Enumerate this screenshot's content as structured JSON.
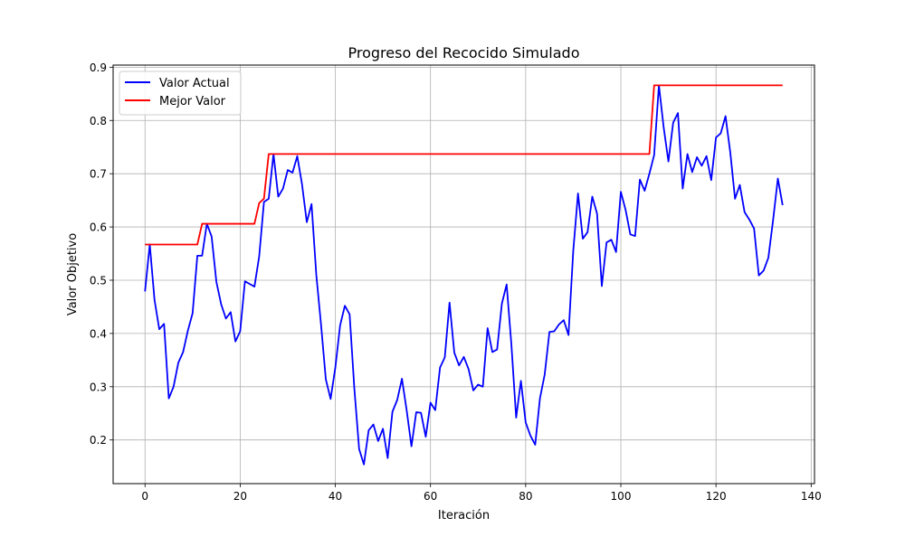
{
  "chart_data": {
    "type": "line",
    "title": "Progreso del Recocido Simulado",
    "xlabel": "Iteración",
    "ylabel": "Valor Objetivo",
    "xlim": [
      -6.7,
      140.7
    ],
    "ylim": [
      0.118,
      0.904
    ],
    "xticks": [
      0,
      20,
      40,
      60,
      80,
      100,
      120,
      140
    ],
    "yticks": [
      0.2,
      0.3,
      0.4,
      0.5,
      0.6,
      0.7,
      0.8,
      0.9
    ],
    "grid": true,
    "legend_position": "upper-left",
    "series": [
      {
        "name": "Valor Actual",
        "color": "#0000ff",
        "x": [
          0,
          1,
          2,
          3,
          4,
          5,
          6,
          7,
          8,
          9,
          10,
          11,
          12,
          13,
          14,
          15,
          16,
          17,
          18,
          19,
          20,
          21,
          22,
          23,
          24,
          25,
          26,
          27,
          28,
          29,
          30,
          31,
          32,
          33,
          34,
          35,
          36,
          37,
          38,
          39,
          40,
          41,
          42,
          43,
          44,
          45,
          46,
          47,
          48,
          49,
          50,
          51,
          52,
          53,
          54,
          55,
          56,
          57,
          58,
          59,
          60,
          61,
          62,
          63,
          64,
          65,
          66,
          67,
          68,
          69,
          70,
          71,
          72,
          73,
          74,
          75,
          76,
          77,
          78,
          79,
          80,
          81,
          82,
          83,
          84,
          85,
          86,
          87,
          88,
          89,
          90,
          91,
          92,
          93,
          94,
          95,
          96,
          97,
          98,
          99,
          100,
          101,
          102,
          103,
          104,
          105,
          106,
          107,
          108,
          109,
          110,
          111,
          112,
          113,
          114,
          115,
          116,
          117,
          118,
          119,
          120,
          121,
          122,
          123,
          124,
          125,
          126,
          127,
          128,
          129,
          130,
          131,
          132,
          133,
          134
        ],
        "values": [
          0.479,
          0.567,
          0.463,
          0.408,
          0.418,
          0.278,
          0.3,
          0.345,
          0.365,
          0.405,
          0.438,
          0.546,
          0.546,
          0.606,
          0.582,
          0.497,
          0.455,
          0.428,
          0.44,
          0.385,
          0.404,
          0.498,
          0.493,
          0.488,
          0.545,
          0.647,
          0.653,
          0.737,
          0.657,
          0.672,
          0.707,
          0.702,
          0.733,
          0.68,
          0.609,
          0.643,
          0.51,
          0.416,
          0.314,
          0.277,
          0.336,
          0.415,
          0.452,
          0.436,
          0.296,
          0.183,
          0.154,
          0.218,
          0.229,
          0.198,
          0.221,
          0.166,
          0.253,
          0.275,
          0.315,
          0.255,
          0.188,
          0.252,
          0.251,
          0.206,
          0.27,
          0.256,
          0.336,
          0.355,
          0.458,
          0.364,
          0.34,
          0.356,
          0.333,
          0.293,
          0.304,
          0.3,
          0.41,
          0.365,
          0.37,
          0.456,
          0.492,
          0.379,
          0.242,
          0.311,
          0.233,
          0.208,
          0.191,
          0.278,
          0.323,
          0.403,
          0.404,
          0.417,
          0.425,
          0.397,
          0.555,
          0.663,
          0.578,
          0.59,
          0.657,
          0.625,
          0.489,
          0.571,
          0.576,
          0.553,
          0.666,
          0.632,
          0.586,
          0.583,
          0.689,
          0.668,
          0.7,
          0.735,
          0.866,
          0.787,
          0.723,
          0.796,
          0.814,
          0.672,
          0.737,
          0.703,
          0.731,
          0.715,
          0.733,
          0.688,
          0.768,
          0.776,
          0.808,
          0.74,
          0.653,
          0.679,
          0.628,
          0.614,
          0.597,
          0.509,
          0.518,
          0.542,
          0.613,
          0.691,
          0.641
        ]
      },
      {
        "name": "Mejor Valor",
        "color": "#ff0000",
        "x": [
          0,
          11,
          12,
          23,
          24,
          25,
          26,
          106,
          107,
          134
        ],
        "values": [
          0.567,
          0.567,
          0.606,
          0.606,
          0.645,
          0.653,
          0.737,
          0.737,
          0.866,
          0.866
        ]
      }
    ]
  }
}
